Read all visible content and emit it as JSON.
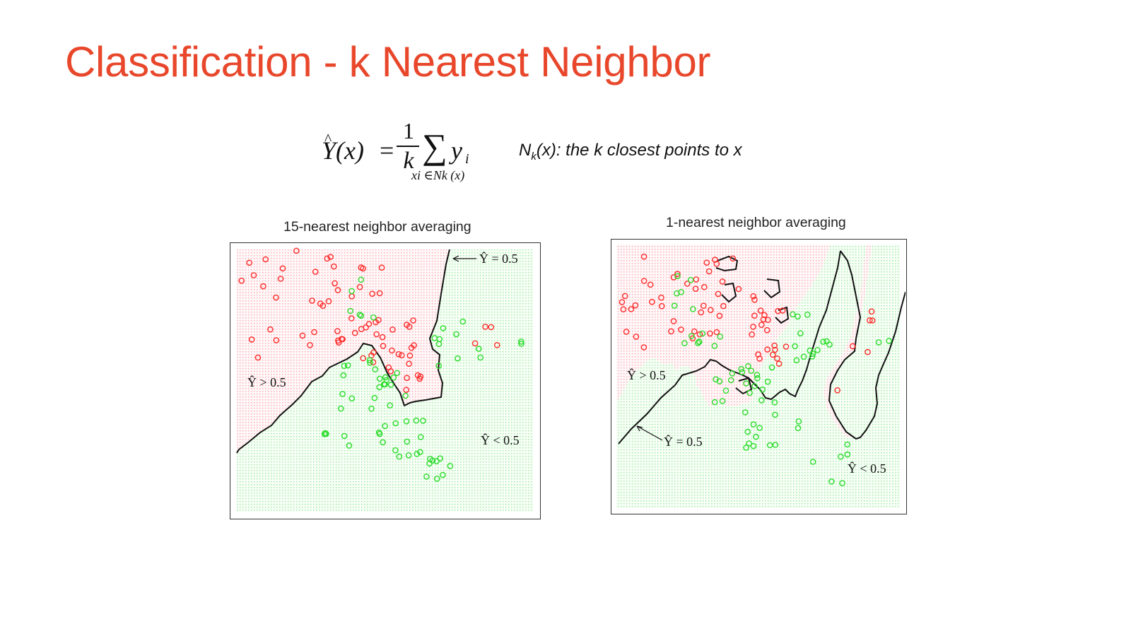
{
  "title": "Classification - k Nearest Neighbor",
  "colors": {
    "title": "#e8472b",
    "class_red": "#ff2b2b",
    "class_green": "#2bdc2b",
    "red_region": "#f7aab0",
    "green_region": "#9ce69c",
    "boundary": "#111111"
  },
  "formula": {
    "lhs": "Y(x)",
    "hat": "^",
    "equals": "=",
    "numerator": "1",
    "denominator": "k",
    "sum": "∑",
    "summand": "y",
    "summand_sub": "i",
    "sum_sub": "xi ∈Nk (x)",
    "note_prefix": "N",
    "note_sub": "k",
    "note_rest": "(x): the k closest points to x"
  },
  "panels": [
    {
      "title": "15-nearest neighbor averaging",
      "labels": {
        "boundary": "Ŷ = 0.5",
        "above": "Ŷ > 0.5",
        "below": "Ŷ < 0.5"
      }
    },
    {
      "title": "1-nearest neighbor averaging",
      "labels": {
        "boundary": "Ŷ = 0.5",
        "above": "Ŷ > 0.5",
        "below": "Ŷ < 0.5"
      }
    }
  ]
}
